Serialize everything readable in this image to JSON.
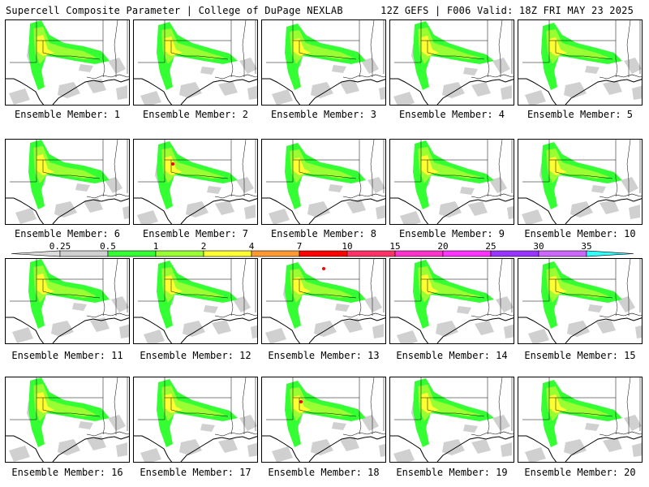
{
  "header": {
    "left": "Supercell Composite Parameter | College of DuPage NEXLAB",
    "right": "12Z GEFS | F006 Valid: 18Z FRI MAY 23 2025"
  },
  "colorbar": {
    "ticks": [
      "0.25",
      "0.5",
      "1",
      "2",
      "4",
      "7",
      "10",
      "15",
      "20",
      "25",
      "30",
      "35"
    ],
    "colors": [
      "#d0d0d0",
      "#33ff33",
      "#99ff33",
      "#ffff33",
      "#ff9933",
      "#ff0000",
      "#ff3366",
      "#ff33cc",
      "#ff33ff",
      "#9933ff",
      "#cc66ff",
      "#33ffff"
    ],
    "edge_color": "#dddddd"
  },
  "panels": [
    {
      "label": "Ensemble Member: 1"
    },
    {
      "label": "Ensemble Member: 2"
    },
    {
      "label": "Ensemble Member: 3"
    },
    {
      "label": "Ensemble Member: 4"
    },
    {
      "label": "Ensemble Member: 5"
    },
    {
      "label": "Ensemble Member: 6"
    },
    {
      "label": "Ensemble Member: 7"
    },
    {
      "label": "Ensemble Member: 8"
    },
    {
      "label": "Ensemble Member: 9"
    },
    {
      "label": "Ensemble Member: 10"
    },
    {
      "label": "Ensemble Member: 11"
    },
    {
      "label": "Ensemble Member: 12"
    },
    {
      "label": "Ensemble Member: 13"
    },
    {
      "label": "Ensemble Member: 14"
    },
    {
      "label": "Ensemble Member: 15"
    },
    {
      "label": "Ensemble Member: 16"
    },
    {
      "label": "Ensemble Member: 17"
    },
    {
      "label": "Ensemble Member: 18"
    },
    {
      "label": "Ensemble Member: 19"
    },
    {
      "label": "Ensemble Member: 20"
    }
  ]
}
